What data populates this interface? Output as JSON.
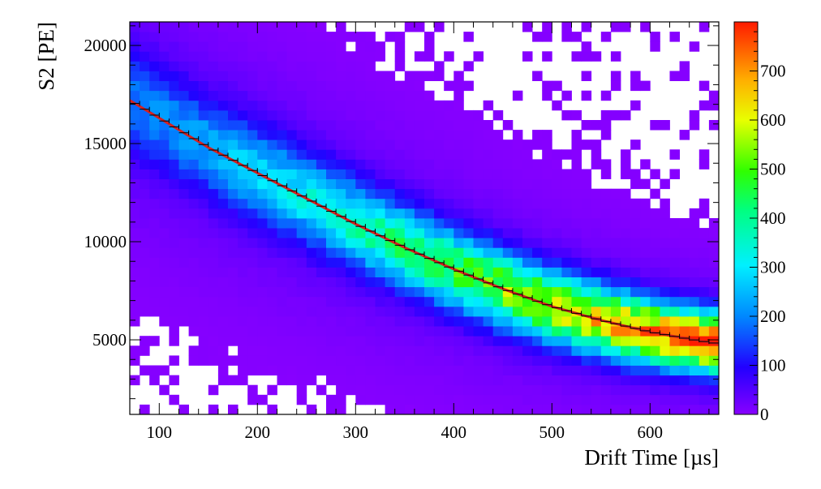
{
  "chart_data": {
    "type": "heatmap",
    "title": "",
    "xlabel": "Drift Time [µs]",
    "ylabel": "S2 [PE]",
    "xlim": [
      70,
      670
    ],
    "ylim": [
      1200,
      21200
    ],
    "x_ticks": [
      100,
      200,
      300,
      400,
      500,
      600
    ],
    "x_tick_labels": [
      "100",
      "200",
      "300",
      "400",
      "500",
      "600"
    ],
    "y_ticks": [
      5000,
      10000,
      15000,
      20000
    ],
    "y_tick_labels": [
      "5000",
      "10000",
      "15000",
      "20000"
    ],
    "colorbar": {
      "zlim": [
        0,
        800
      ],
      "ticks": [
        0,
        100,
        200,
        300,
        400,
        500,
        600,
        700
      ],
      "tick_labels": [
        "0",
        "100",
        "200",
        "300",
        "400",
        "500",
        "600",
        "700"
      ]
    },
    "bins": {
      "nx": 60,
      "ny": 40
    },
    "band": {
      "description_values": "density concentrated along fit curve; counts rise from ~150 at low drift time to ~750 at high drift time",
      "peak_counts_start": 150,
      "peak_counts_end": 760
    },
    "fit_series": {
      "name": "",
      "color": "#d62020",
      "x": [
        70,
        100,
        150,
        200,
        250,
        300,
        350,
        400,
        450,
        500,
        550,
        600,
        650,
        670
      ],
      "y": [
        17200,
        16300,
        14800,
        13500,
        12200,
        10900,
        9700,
        8600,
        7600,
        6700,
        6000,
        5400,
        4950,
        4800
      ]
    },
    "profile_points": {
      "x_start": 75,
      "x_end": 665,
      "step": 10
    },
    "grid": false,
    "legend": "none"
  }
}
